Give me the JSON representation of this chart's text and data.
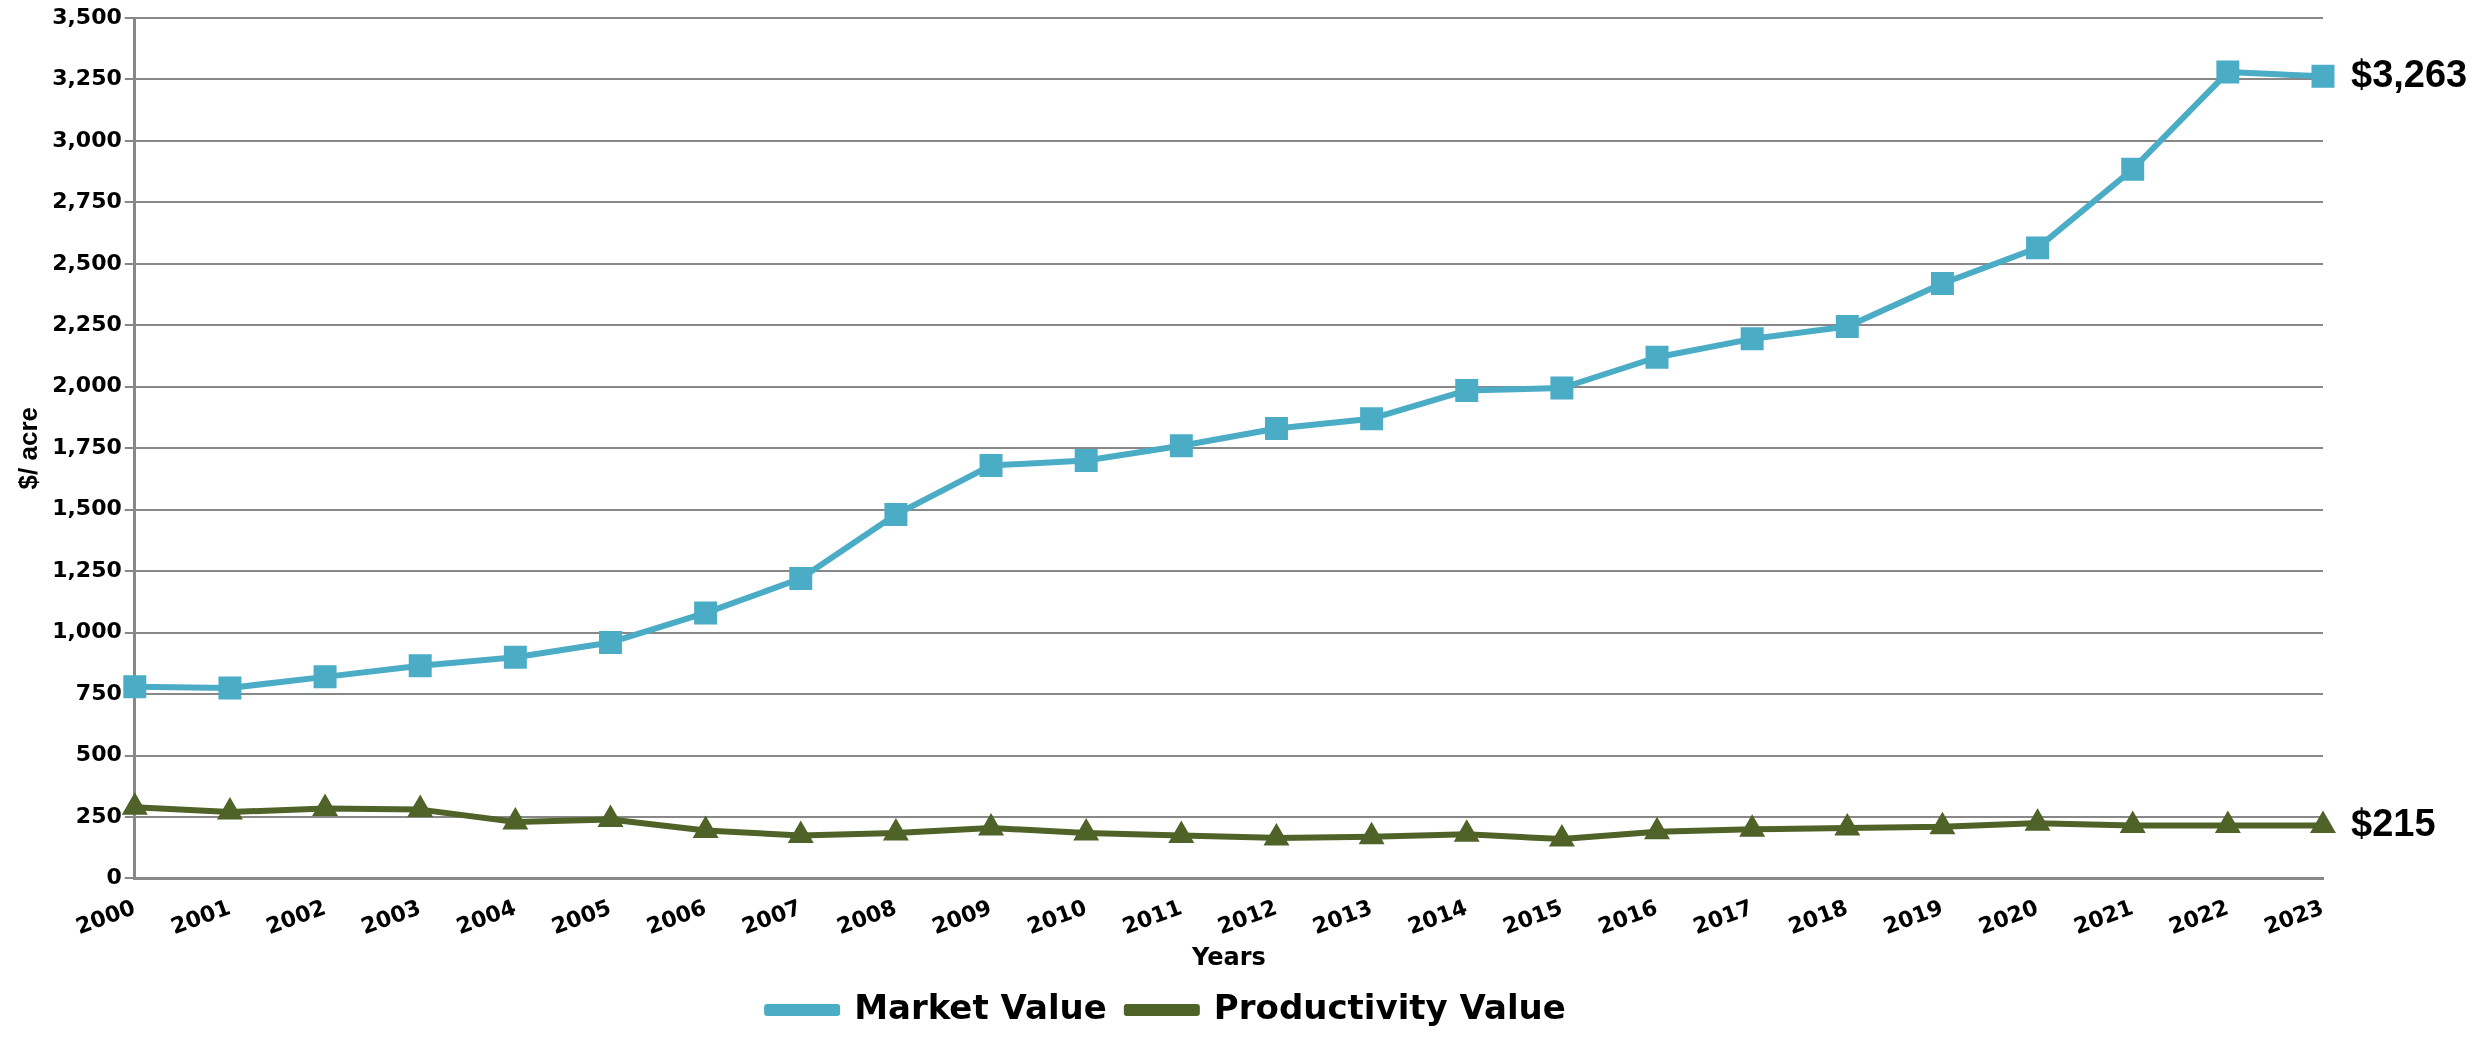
{
  "chart_data": {
    "type": "line",
    "xlabel": "Years",
    "ylabel": "$/ acre",
    "categories": [
      "2000",
      "2001",
      "2002",
      "2003",
      "2004",
      "2005",
      "2006",
      "2007",
      "2008",
      "2009",
      "2010",
      "2011",
      "2012",
      "2013",
      "2014",
      "2015",
      "2016",
      "2017",
      "2018",
      "2019",
      "2020",
      "2021",
      "2022",
      "2023"
    ],
    "series": [
      {
        "name": "Market Value",
        "color": "#4bacc6",
        "marker": "square",
        "values": [
          780,
          775,
          820,
          865,
          900,
          960,
          1080,
          1220,
          1480,
          1680,
          1700,
          1760,
          1830,
          1870,
          1985,
          1995,
          2120,
          2195,
          2245,
          2420,
          2565,
          2885,
          3280,
          3263
        ]
      },
      {
        "name": "Productivity Value",
        "color": "#4f6228",
        "marker": "triangle",
        "values": [
          290,
          270,
          285,
          280,
          230,
          240,
          195,
          175,
          185,
          205,
          185,
          175,
          165,
          170,
          180,
          160,
          190,
          200,
          205,
          210,
          225,
          215,
          215,
          215
        ]
      }
    ],
    "ylim": [
      0,
      3500
    ],
    "yticks": [
      0,
      250,
      500,
      750,
      {
        "value": 1000,
        "label": "1,000"
      },
      {
        "value": 1250,
        "label": "1,250"
      },
      {
        "value": 1500,
        "label": "1,500"
      },
      {
        "value": 1750,
        "label": "1,750"
      },
      {
        "value": 2000,
        "label": "2,000"
      },
      {
        "value": 2250,
        "label": "2,250"
      },
      {
        "value": 2500,
        "label": "2,500"
      },
      {
        "value": 2750,
        "label": "2,750"
      },
      {
        "value": 3000,
        "label": "3,000"
      },
      {
        "value": 3250,
        "label": "3,250"
      },
      {
        "value": 3500,
        "label": "3,500"
      }
    ],
    "grid": "y",
    "legend": "bottom",
    "line_style": "solid",
    "annotations": [
      {
        "text": "$3,263",
        "x": "2023",
        "y": 3263
      },
      {
        "text": "$215",
        "x": "2023",
        "y": 215
      }
    ]
  }
}
